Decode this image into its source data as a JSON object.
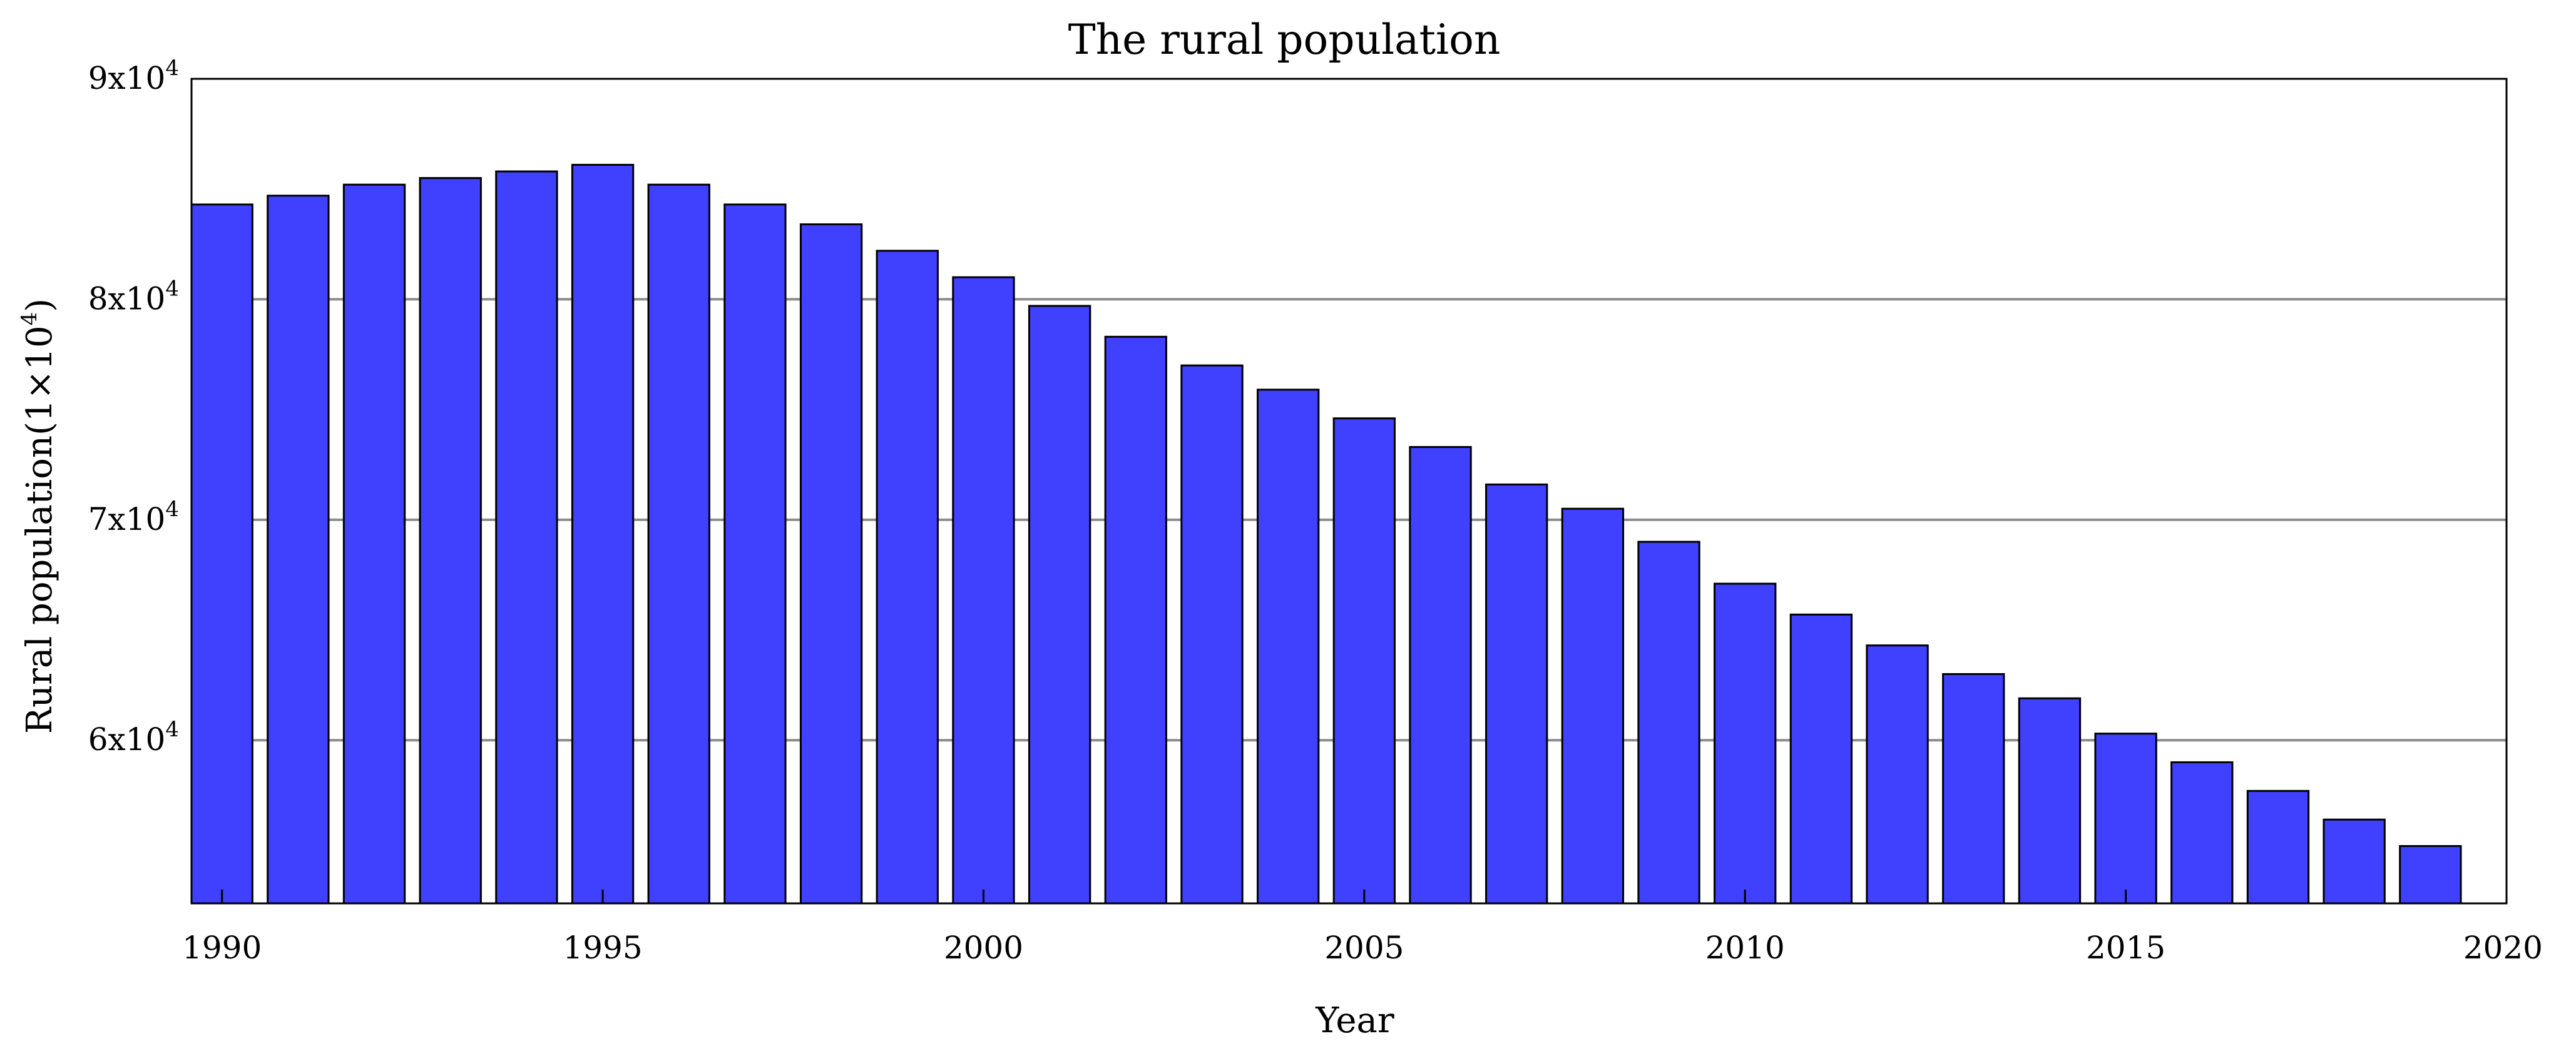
{
  "chart_data": {
    "type": "bar",
    "title": "The rural population",
    "xlabel": "Year",
    "ylabel": "Rural population(1×10",
    "ylabel_exp": "4",
    "ylabel_close": ")",
    "x_tick_labels": [
      "1990",
      "1995",
      "2000",
      "2005",
      "2010",
      "2015",
      "2020"
    ],
    "y_tick_labels": [
      {
        "value": 60000,
        "base": "6x10",
        "exp": "4"
      },
      {
        "value": 70000,
        "base": "7x10",
        "exp": "4"
      },
      {
        "value": 80000,
        "base": "8x10",
        "exp": "4"
      },
      {
        "value": 90000,
        "base": "9x10",
        "exp": "4"
      }
    ],
    "xlim": [
      1989.6,
      2020
    ],
    "ylim": [
      52600,
      90000
    ],
    "grid": "horizontal",
    "bar_color": "#4040ff",
    "years": [
      1990,
      1991,
      1992,
      1993,
      1994,
      1995,
      1996,
      1997,
      1998,
      1999,
      2000,
      2001,
      2002,
      2003,
      2004,
      2005,
      2006,
      2007,
      2008,
      2009,
      2010,
      2011,
      2012,
      2013,
      2014,
      2015,
      2016,
      2017,
      2018,
      2019
    ],
    "values": [
      84300,
      84700,
      85200,
      85500,
      85800,
      86100,
      85200,
      84300,
      83400,
      82200,
      81000,
      79700,
      78300,
      77000,
      75900,
      74600,
      73300,
      71600,
      70500,
      69000,
      67100,
      65700,
      64300,
      63000,
      61900,
      60300,
      59000,
      57700,
      56400,
      55200
    ]
  }
}
